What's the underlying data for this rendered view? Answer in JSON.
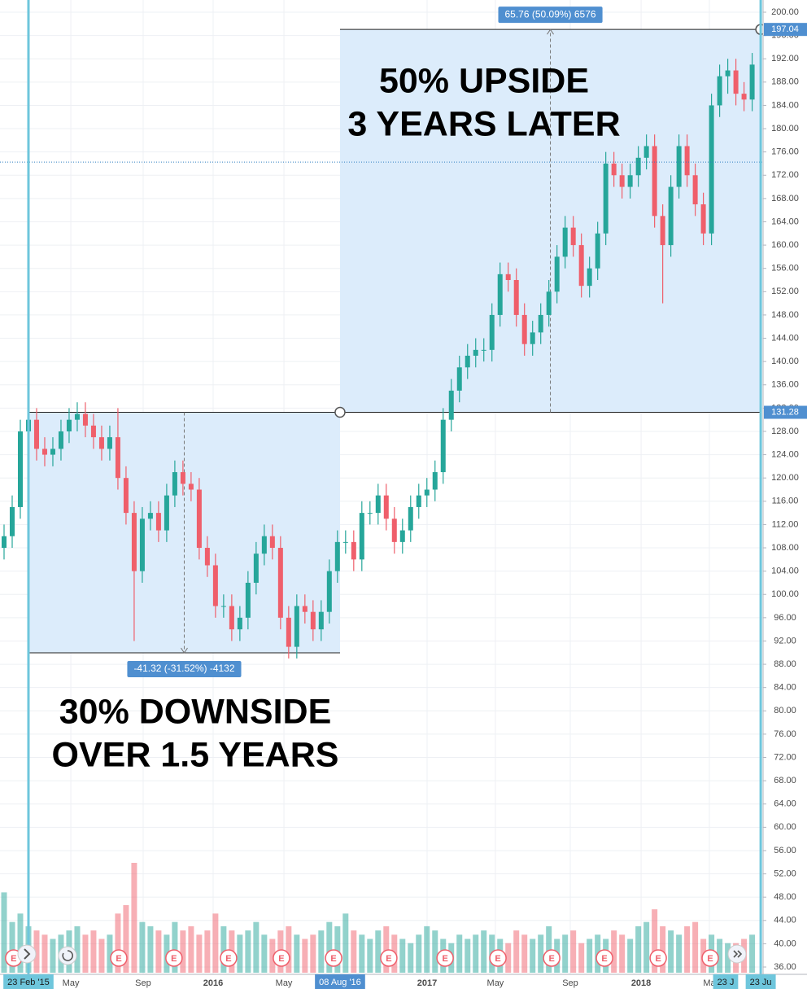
{
  "chart_data": {
    "type": "candlestick",
    "x": [
      2015.023,
      2015.061,
      2015.099,
      2015.137,
      2015.175,
      2015.213,
      2015.251,
      2015.289,
      2015.327,
      2015.365,
      2015.403,
      2015.441,
      2015.479,
      2015.517,
      2015.555,
      2015.593,
      2015.631,
      2015.669,
      2015.707,
      2015.745,
      2015.783,
      2015.821,
      2015.859,
      2015.897,
      2015.935,
      2015.973,
      2016.011,
      2016.049,
      2016.087,
      2016.125,
      2016.163,
      2016.201,
      2016.239,
      2016.277,
      2016.315,
      2016.353,
      2016.391,
      2016.429,
      2016.467,
      2016.505,
      2016.543,
      2016.581,
      2016.619,
      2016.657,
      2016.695,
      2016.733,
      2016.771,
      2016.809,
      2016.847,
      2016.885,
      2016.923,
      2016.961,
      2016.999,
      2017.037,
      2017.075,
      2017.113,
      2017.151,
      2017.189,
      2017.227,
      2017.265,
      2017.303,
      2017.341,
      2017.379,
      2017.417,
      2017.455,
      2017.493,
      2017.531,
      2017.569,
      2017.607,
      2017.645,
      2017.683,
      2017.721,
      2017.759,
      2017.797,
      2017.835,
      2017.873,
      2017.911,
      2017.949,
      2017.987,
      2018.025,
      2018.063,
      2018.101,
      2018.139,
      2018.177,
      2018.215,
      2018.253,
      2018.291,
      2018.329,
      2018.367,
      2018.405,
      2018.443,
      2018.481,
      2018.519
    ],
    "open": [
      108,
      110,
      115,
      128,
      130,
      125,
      124,
      125,
      128,
      130,
      131,
      129,
      127,
      125,
      127,
      120,
      114,
      104,
      113,
      114,
      111,
      117,
      121,
      119,
      118,
      108,
      105,
      98,
      98,
      94,
      96,
      102,
      107,
      110,
      108,
      96,
      91,
      98,
      97,
      94,
      97,
      104,
      109,
      109,
      106,
      114,
      114,
      117,
      113,
      109,
      111,
      115,
      117,
      118,
      121,
      130,
      135,
      139,
      141,
      142,
      142,
      148,
      155,
      154,
      148,
      143,
      145,
      148,
      152,
      158,
      163,
      160,
      153,
      156,
      162,
      174,
      172,
      170,
      172,
      175,
      177,
      165,
      160,
      170,
      177,
      172,
      167,
      162,
      184,
      189,
      190,
      186,
      185
    ],
    "high": [
      112,
      117,
      130,
      132,
      132,
      127,
      127,
      130,
      132,
      133,
      133,
      131,
      129,
      129,
      132,
      122,
      116,
      115,
      116,
      116,
      119,
      123,
      123,
      121,
      120,
      110,
      107,
      100,
      100,
      98,
      104,
      109,
      112,
      112,
      110,
      98,
      100,
      100,
      99,
      99,
      106,
      111,
      111,
      111,
      116,
      116,
      119,
      119,
      115,
      113,
      117,
      119,
      120,
      123,
      132,
      137,
      141,
      143,
      144,
      144,
      150,
      157,
      157,
      156,
      150,
      147,
      150,
      154,
      160,
      165,
      165,
      162,
      158,
      164,
      176,
      176,
      174,
      174,
      177,
      179,
      179,
      167,
      172,
      179,
      179,
      174,
      169,
      186,
      191,
      192,
      192,
      188,
      193
    ],
    "low": [
      106,
      108,
      113,
      126,
      123,
      122,
      122,
      123,
      126,
      128,
      127,
      125,
      123,
      123,
      118,
      112,
      92,
      102,
      111,
      109,
      109,
      115,
      117,
      116,
      106,
      103,
      96,
      96,
      92,
      92,
      94,
      100,
      105,
      106,
      94,
      89,
      89,
      95,
      92,
      92,
      95,
      102,
      107,
      104,
      104,
      112,
      112,
      111,
      107,
      107,
      109,
      113,
      115,
      116,
      119,
      128,
      133,
      137,
      139,
      140,
      140,
      146,
      152,
      146,
      141,
      141,
      143,
      146,
      150,
      156,
      158,
      151,
      151,
      154,
      160,
      170,
      168,
      168,
      170,
      173,
      163,
      150,
      158,
      168,
      170,
      165,
      160,
      160,
      182,
      186,
      184,
      183,
      183
    ],
    "close": [
      110,
      115,
      128,
      130,
      125,
      124,
      125,
      128,
      130,
      131,
      129,
      127,
      125,
      127,
      120,
      114,
      104,
      113,
      114,
      111,
      117,
      121,
      119,
      118,
      108,
      105,
      98,
      98,
      94,
      96,
      102,
      107,
      110,
      108,
      96,
      91,
      98,
      97,
      94,
      97,
      104,
      109,
      109,
      106,
      114,
      114,
      117,
      113,
      109,
      111,
      115,
      117,
      118,
      121,
      130,
      135,
      139,
      141,
      142,
      142,
      148,
      155,
      154,
      148,
      143,
      145,
      148,
      152,
      158,
      163,
      160,
      153,
      156,
      162,
      174,
      172,
      170,
      172,
      175,
      177,
      165,
      160,
      170,
      177,
      172,
      167,
      162,
      184,
      189,
      190,
      186,
      185,
      191
    ],
    "volume": [
      95,
      60,
      70,
      55,
      50,
      45,
      40,
      45,
      50,
      55,
      45,
      50,
      40,
      45,
      70,
      80,
      130,
      60,
      55,
      50,
      45,
      60,
      50,
      55,
      45,
      50,
      70,
      55,
      50,
      45,
      50,
      60,
      45,
      40,
      50,
      55,
      45,
      40,
      45,
      50,
      60,
      55,
      70,
      50,
      45,
      40,
      50,
      55,
      45,
      40,
      35,
      45,
      55,
      50,
      40,
      35,
      45,
      40,
      45,
      50,
      45,
      40,
      35,
      50,
      45,
      40,
      45,
      55,
      40,
      45,
      50,
      35,
      40,
      45,
      40,
      50,
      45,
      40,
      55,
      60,
      75,
      55,
      50,
      45,
      55,
      60,
      40,
      45,
      40,
      35,
      35,
      40,
      45
    ],
    "up_color": "#26a69a",
    "down_color": "#ef5f6b",
    "xlim": [
      2015.004,
      2018.57
    ],
    "ylim": [
      36,
      200
    ],
    "xticks": [
      {
        "value": 2015.335,
        "label": "May"
      },
      {
        "value": 2015.673,
        "label": "Sep"
      },
      2016,
      {
        "value": 2016.331,
        "label": "May"
      },
      2017,
      {
        "value": 2017.319,
        "label": "May"
      },
      {
        "value": 2017.669,
        "label": "Sep"
      },
      2018,
      {
        "value": 2018.319,
        "label": "Ma"
      }
    ],
    "yticks": [
      {
        "value": 200,
        "label": "200.00"
      },
      {
        "value": 196,
        "label": "196.00"
      },
      {
        "value": 192,
        "label": "192.00"
      },
      {
        "value": 188,
        "label": "188.00"
      },
      {
        "value": 184,
        "label": "184.00"
      },
      {
        "value": 180,
        "label": "180.00"
      },
      {
        "value": 176,
        "label": "176.00"
      },
      {
        "value": 172,
        "label": "172.00"
      },
      {
        "value": 168,
        "label": "168.00"
      },
      {
        "value": 164,
        "label": "164.00"
      },
      {
        "value": 160,
        "label": "160.00"
      },
      {
        "value": 156,
        "label": "156.00"
      },
      {
        "value": 152,
        "label": "152.00"
      },
      {
        "value": 148,
        "label": "148.00"
      },
      {
        "value": 144,
        "label": "144.00"
      },
      {
        "value": 140,
        "label": "140.00"
      },
      {
        "value": 136,
        "label": "136.00"
      },
      {
        "value": 132,
        "label": "132.00"
      },
      {
        "value": 128,
        "label": "128.00"
      },
      {
        "value": 124,
        "label": "124.00"
      },
      {
        "value": 120,
        "label": "120.00"
      },
      {
        "value": 116,
        "label": "116.00"
      },
      {
        "value": 112,
        "label": "112.00"
      },
      {
        "value": 108,
        "label": "108.00"
      },
      {
        "value": 104,
        "label": "104.00"
      },
      {
        "value": 100,
        "label": "100.00"
      },
      {
        "value": 96,
        "label": "96.00"
      },
      {
        "value": 92,
        "label": "92.00"
      },
      {
        "value": 88,
        "label": "88.00"
      },
      {
        "value": 84,
        "label": "84.00"
      },
      {
        "value": 80,
        "label": "80.00"
      },
      {
        "value": 76,
        "label": "76.00"
      },
      {
        "value": 72,
        "label": "72.00"
      },
      {
        "value": 68,
        "label": "68.00"
      },
      {
        "value": 64,
        "label": "64.00"
      },
      {
        "value": 60,
        "label": "60.00"
      },
      {
        "value": 56,
        "label": "56.00"
      },
      {
        "value": 52,
        "label": "52.00"
      },
      {
        "value": 48,
        "label": "48.00"
      },
      {
        "value": 44,
        "label": "44.00"
      },
      {
        "value": 40,
        "label": "40.00"
      },
      {
        "value": 36,
        "label": "36.00"
      }
    ],
    "grid": true,
    "marker_x": [
      {
        "value": 2015.137,
        "label": "23 Feb '15"
      },
      {
        "value": 2016.593,
        "label": "08 Aug '16"
      },
      {
        "value": 2018.395,
        "label": "23 J"
      },
      {
        "value": 2018.559,
        "label": "23 Ju"
      }
    ],
    "marker_y": [
      197.04,
      131.28
    ],
    "price_line": 174.26,
    "measures": [
      {
        "x": [
          2015.137,
          2016.593
        ],
        "y": [
          131.28,
          89.96
        ],
        "label": "-41.32 (-31.52%) -4132"
      },
      {
        "x": [
          2016.593,
          2018.559
        ],
        "y": [
          131.28,
          197.04
        ],
        "label": "65.76 (50.09%) 6576"
      }
    ],
    "annotations": [
      {
        "lines": [
          "50% UPSIDE",
          "3 YEARS LATER"
        ]
      },
      {
        "lines": [
          "30% DOWNSIDE",
          "OVER 1.5 YEARS"
        ]
      }
    ],
    "earnings": {
      "label": "E",
      "x": [
        2015.068,
        2015.559,
        2015.817,
        2016.072,
        2016.319,
        2016.563,
        2016.821,
        2017.084,
        2017.331,
        2017.582,
        2017.829,
        2018.08,
        2018.323
      ]
    }
  }
}
